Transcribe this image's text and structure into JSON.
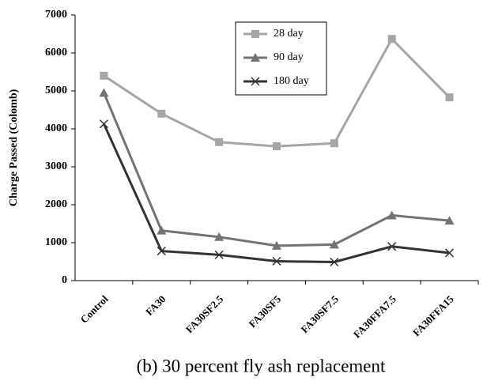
{
  "chart_data": {
    "type": "line",
    "caption": "(b) 30 percent fly ash replacement",
    "y_label": "Charge Passed (Colomb)",
    "categories": [
      "Control",
      "FA30",
      "FA30SF2.5",
      "FA30SF5",
      "FA30SF7.5",
      "FA30FFA7.5",
      "FA30FFA15"
    ],
    "series": [
      {
        "name": "28 day",
        "color": "#a6a6a6",
        "marker": "square",
        "values": [
          5400,
          4400,
          3650,
          3540,
          3620,
          6370,
          4830
        ]
      },
      {
        "name": "90 day",
        "color": "#737373",
        "marker": "triangle",
        "values": [
          4950,
          1320,
          1150,
          920,
          950,
          1720,
          1580
        ]
      },
      {
        "name": "180 day",
        "color": "#333333",
        "marker": "x",
        "values": [
          4130,
          780,
          680,
          510,
          490,
          900,
          730
        ]
      }
    ],
    "ylim": [
      0,
      7000
    ],
    "yticks": [
      0,
      1000,
      2000,
      3000,
      4000,
      5000,
      6000,
      7000
    ],
    "grid": false,
    "legend": "top-center"
  }
}
